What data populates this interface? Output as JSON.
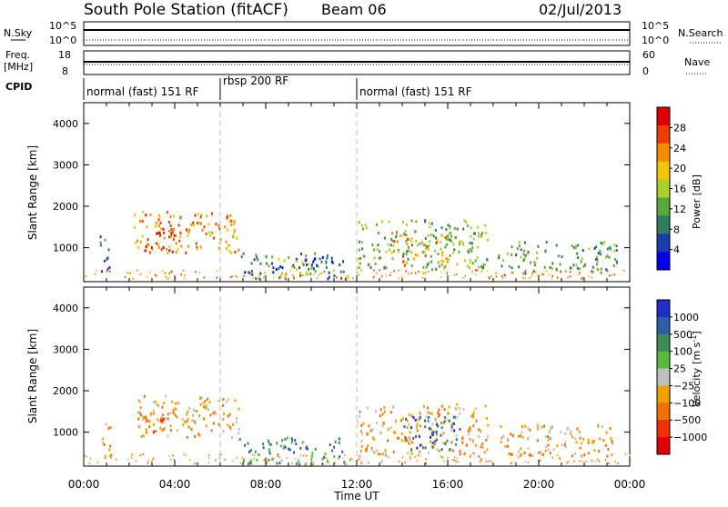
{
  "header": {
    "station": "South Pole Station (fitACF)",
    "beam": "Beam 06",
    "date": "02/Jul/2013"
  },
  "summary": {
    "nsky_label": "N.Sky",
    "nsearch_label": "N.Search",
    "freq_label_1": "Freq.",
    "freq_label_2": "[MHz]",
    "nave_label": "Nave",
    "cpid_label": "CPID",
    "left_ticks_top": [
      "10^5",
      "10^0"
    ],
    "right_ticks_top": [
      "10^5",
      "10^0"
    ],
    "left_ticks_freq": [
      "18",
      "8"
    ],
    "right_ticks_nave": [
      "60",
      "0"
    ],
    "cpid_segments": [
      {
        "label": "normal (fast) 151 RF",
        "start": 0,
        "end": 6
      },
      {
        "label": "rbsp 200 RF",
        "start": 6,
        "end": 12
      },
      {
        "label": "normal (fast) 151 RF",
        "start": 12,
        "end": 24
      }
    ]
  },
  "colors": {
    "power_scale": [
      "#0000ee",
      "#1c3ea8",
      "#2e7d62",
      "#59a83c",
      "#a8cf2a",
      "#f2c600",
      "#f58c00",
      "#ef3a00",
      "#dd0000"
    ],
    "velocity_scale": [
      "#1f2fc8",
      "#2f5ea8",
      "#3c8c58",
      "#5ab83a",
      "#bfbfbf",
      "#f0a000",
      "#f07000",
      "#f03000",
      "#e00000"
    ]
  },
  "chart_data": [
    {
      "type": "heatmap",
      "panel": "power",
      "ylabel": "Slant Range [km]",
      "y_ticks": [
        "4000",
        "3000",
        "2000",
        "1000"
      ],
      "ylim": [
        180,
        4500
      ],
      "xlim": [
        0,
        24
      ],
      "vertical_markers": [
        6,
        12
      ],
      "colorbar": {
        "label": "Power [dB]",
        "ticks": [
          "28",
          "24",
          "20",
          "16",
          "12",
          "8",
          "4"
        ],
        "range": [
          0,
          30
        ]
      },
      "patches": [
        {
          "t0": 2.2,
          "t1": 6.8,
          "r0": 900,
          "r1": 1900,
          "level": 22
        },
        {
          "t0": 2.6,
          "t1": 4.0,
          "r0": 900,
          "r1": 1500,
          "level": 28
        },
        {
          "t0": 0.7,
          "t1": 1.2,
          "r0": 400,
          "r1": 1300,
          "level": 8
        },
        {
          "t0": 6.8,
          "t1": 11.5,
          "r0": 250,
          "r1": 900,
          "level": 6
        },
        {
          "t0": 8.5,
          "t1": 10.0,
          "r0": 300,
          "r1": 800,
          "level": 16
        },
        {
          "t0": 12.0,
          "t1": 17.8,
          "r0": 500,
          "r1": 1700,
          "level": 12
        },
        {
          "t0": 13.5,
          "t1": 16.0,
          "r0": 600,
          "r1": 1400,
          "level": 20
        },
        {
          "t0": 18.2,
          "t1": 23.5,
          "r0": 400,
          "r1": 1200,
          "level": 10
        }
      ]
    },
    {
      "type": "heatmap",
      "panel": "velocity",
      "ylabel": "Slant Range [km]",
      "y_ticks": [
        "4000",
        "3000",
        "2000",
        "1000"
      ],
      "ylim": [
        180,
        4500
      ],
      "xlim": [
        0,
        24
      ],
      "vertical_markers": [
        6,
        12
      ],
      "x_ticks": [
        "00:00",
        "04:00",
        "08:00",
        "12:00",
        "16:00",
        "20:00",
        "00:00"
      ],
      "xlabel": "Time UT",
      "colorbar": {
        "label": "Velocity",
        "label_unit": "[m s",
        "label_exp": "-1",
        "label_close": "]",
        "ticks": [
          "1000",
          "500",
          "100",
          "25",
          "−25",
          "−100",
          "−500",
          "−1000"
        ]
      },
      "patches": [
        {
          "t0": 2.2,
          "t1": 6.8,
          "r0": 900,
          "r1": 1900,
          "level": -100
        },
        {
          "t0": 2.6,
          "t1": 4.0,
          "r0": 1000,
          "r1": 1500,
          "level": -500
        },
        {
          "t0": 0.7,
          "t1": 1.2,
          "r0": 400,
          "r1": 1300,
          "level": -100
        },
        {
          "t0": 6.8,
          "t1": 11.5,
          "r0": 250,
          "r1": 900,
          "level": 100
        },
        {
          "t0": 12.0,
          "t1": 17.8,
          "r0": 500,
          "r1": 1700,
          "level": -100
        },
        {
          "t0": 14.0,
          "t1": 16.5,
          "r0": 600,
          "r1": 1400,
          "level": 500
        },
        {
          "t0": 18.2,
          "t1": 23.5,
          "r0": 400,
          "r1": 1200,
          "level": -100
        }
      ]
    }
  ]
}
